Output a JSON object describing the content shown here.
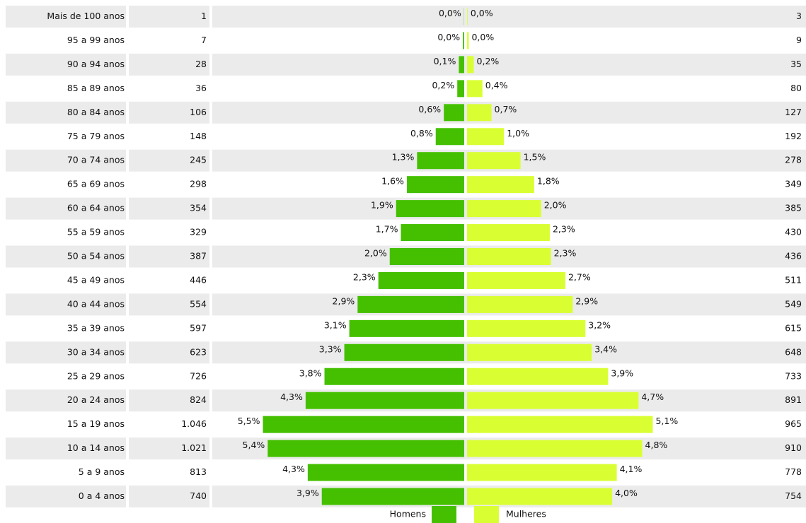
{
  "chart_data": {
    "type": "pyramid",
    "categories": [
      "Mais de 100 anos",
      "95 a 99 anos",
      "90 a 94 anos",
      "85 a 89 anos",
      "80 a 84 anos",
      "75 a 79 anos",
      "70 a 74 anos",
      "65 a 69 anos",
      "60 a 64 anos",
      "55 a 59 anos",
      "50 a 54 anos",
      "45 a 49 anos",
      "40 a 44 anos",
      "35 a 39 anos",
      "30 a 34 anos",
      "25 a 29 anos",
      "20 a 24 anos",
      "15 a 19 anos",
      "10 a 14 anos",
      "5 a 9 anos",
      "0 a 4 anos"
    ],
    "series": [
      {
        "name": "Homens",
        "color": "#44c000",
        "values": [
          1,
          7,
          28,
          36,
          106,
          148,
          245,
          298,
          354,
          329,
          387,
          446,
          554,
          597,
          623,
          726,
          824,
          1046,
          1021,
          813,
          740
        ],
        "value_labels": [
          "1",
          "7",
          "28",
          "36",
          "106",
          "148",
          "245",
          "298",
          "354",
          "329",
          "387",
          "446",
          "554",
          "597",
          "623",
          "726",
          "824",
          "1.046",
          "1.021",
          "813",
          "740"
        ],
        "percent_labels": [
          "0,0%",
          "0,0%",
          "0,1%",
          "0,2%",
          "0,6%",
          "0,8%",
          "1,3%",
          "1,6%",
          "1,9%",
          "1,7%",
          "2,0%",
          "2,3%",
          "2,9%",
          "3,1%",
          "3,3%",
          "3,8%",
          "4,3%",
          "5,5%",
          "5,4%",
          "4,3%",
          "3,9%"
        ]
      },
      {
        "name": "Mulheres",
        "color": "#d9ff33",
        "values": [
          3,
          9,
          35,
          80,
          127,
          192,
          278,
          349,
          385,
          430,
          436,
          511,
          549,
          615,
          648,
          733,
          891,
          965,
          910,
          778,
          754
        ],
        "percent_labels": [
          "0,0%",
          "0,0%",
          "0,2%",
          "0,4%",
          "0,7%",
          "1,0%",
          "1,5%",
          "1,8%",
          "2,0%",
          "2,3%",
          "2,3%",
          "2,7%",
          "2,9%",
          "3,2%",
          "3,4%",
          "3,9%",
          "4,7%",
          "5,1%",
          "4,8%",
          "4,1%",
          "4,0%"
        ]
      }
    ]
  }
}
